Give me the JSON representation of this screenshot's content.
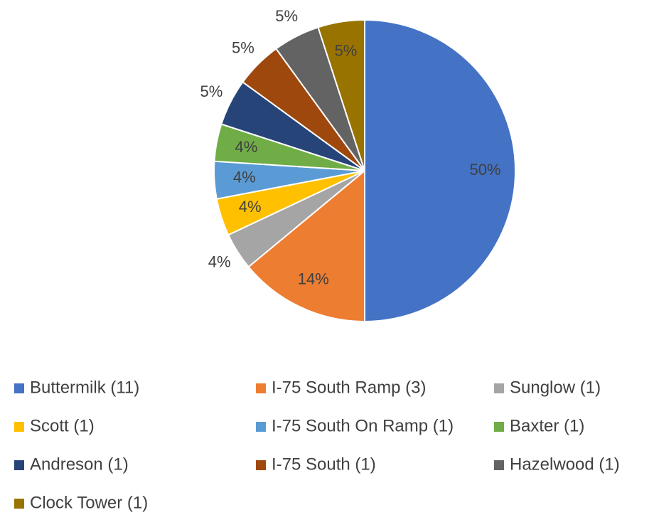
{
  "chart_data": {
    "type": "pie",
    "categories": [
      "Buttermilk (11)",
      "I-75 South Ramp (3)",
      "Sunglow (1)",
      "Scott (1)",
      "I-75 South On Ramp (1)",
      "Baxter (1)",
      "Andreson (1)",
      "I-75 South (1)",
      "Hazelwood (1)",
      "Clock Tower (1)"
    ],
    "values": [
      50,
      14,
      4,
      4,
      4,
      4,
      5,
      5,
      5,
      5
    ],
    "value_labels": [
      "50%",
      "14%",
      "4%",
      "4%",
      "4%",
      "4%",
      "5%",
      "5%",
      "5%",
      "5%"
    ],
    "colors": [
      "#4472c4",
      "#ed7d31",
      "#a5a5a5",
      "#ffc000",
      "#5b9bd5",
      "#70ad47",
      "#264478",
      "#9e480e",
      "#636363",
      "#997300"
    ],
    "legend": "bottom"
  }
}
